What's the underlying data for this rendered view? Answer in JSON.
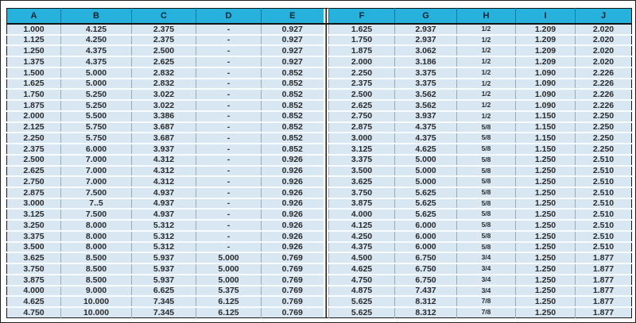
{
  "colors": {
    "header_bg": "#27b2dd",
    "header_text": "#0d2433",
    "row_bg": "#d9e7f3",
    "row_separator": "#fafdff",
    "column_divider": "#98abb8",
    "table_border": "#161616"
  },
  "chart_data": {
    "type": "table",
    "title": "",
    "columns": [
      "A",
      "B",
      "C",
      "D",
      "E",
      "F",
      "G",
      "H",
      "I",
      "J"
    ],
    "fraction_column": "H",
    "rows": [
      [
        "1.000",
        "4.125",
        "2.375",
        "-",
        "0.927",
        "1.625",
        "2.937",
        "1/2",
        "1.209",
        "2.020"
      ],
      [
        "1.125",
        "4.250",
        "2.375",
        "-",
        "0.927",
        "1.750",
        "2.937",
        "1/2",
        "1.209",
        "2.020"
      ],
      [
        "1.250",
        "4.375",
        "2.500",
        "-",
        "0.927",
        "1.875",
        "3.062",
        "1/2",
        "1.209",
        "2.020"
      ],
      [
        "1.375",
        "4.375",
        "2.625",
        "-",
        "0.927",
        "2.000",
        "3.186",
        "1/2",
        "1.209",
        "2.020"
      ],
      [
        "1.500",
        "5.000",
        "2.832",
        "-",
        "0.852",
        "2.250",
        "3.375",
        "1/2",
        "1.090",
        "2.226"
      ],
      [
        "1.625",
        "5.000",
        "2.832",
        "-",
        "0.852",
        "2.375",
        "3.375",
        "1/2",
        "1.090",
        "2.226"
      ],
      [
        "1.750",
        "5.250",
        "3.022",
        "-",
        "0.852",
        "2.500",
        "3.562",
        "1/2",
        "1.090",
        "2.226"
      ],
      [
        "1.875",
        "5.250",
        "3.022",
        "-",
        "0.852",
        "2.625",
        "3.562",
        "1/2",
        "1.090",
        "2.226"
      ],
      [
        "2.000",
        "5.500",
        "3.386",
        "-",
        "0.852",
        "2.750",
        "3.937",
        "1/2",
        "1.150",
        "2.250"
      ],
      [
        "2.125",
        "5.750",
        "3.687",
        "-",
        "0.852",
        "2.875",
        "4.375",
        "5/8",
        "1.150",
        "2.250"
      ],
      [
        "2.250",
        "5.750",
        "3.687",
        "-",
        "0.852",
        "3.000",
        "4.375",
        "5/8",
        "1.150",
        "2.250"
      ],
      [
        "2.375",
        "6.000",
        "3.937",
        "-",
        "0.852",
        "3.125",
        "4.625",
        "5/8",
        "1.150",
        "2.250"
      ],
      [
        "2.500",
        "7.000",
        "4.312",
        "-",
        "0.926",
        "3.375",
        "5.000",
        "5/8",
        "1.250",
        "2.510"
      ],
      [
        "2.625",
        "7.000",
        "4.312",
        "-",
        "0.926",
        "3.500",
        "5.000",
        "5/8",
        "1.250",
        "2.510"
      ],
      [
        "2.750",
        "7.000",
        "4.312",
        "-",
        "0.926",
        "3.625",
        "5.000",
        "5/8",
        "1.250",
        "2.510"
      ],
      [
        "2.875",
        "7.500",
        "4.937",
        "-",
        "0.926",
        "3.750",
        "5.625",
        "5/8",
        "1.250",
        "2.510"
      ],
      [
        "3.000",
        "7..5",
        "4.937",
        "-",
        "0.926",
        "3.875",
        "5.625",
        "5/8",
        "1.250",
        "2.510"
      ],
      [
        "3.125",
        "7.500",
        "4.937",
        "-",
        "0.926",
        "4.000",
        "5.625",
        "5/8",
        "1.250",
        "2.510"
      ],
      [
        "3.250",
        "8.000",
        "5.312",
        "-",
        "0.926",
        "4.125",
        "6.000",
        "5/8",
        "1.250",
        "2.510"
      ],
      [
        "3.375",
        "8.000",
        "5.312",
        "-",
        "0.926",
        "4.250",
        "6.000",
        "5/8",
        "1.250",
        "2.510"
      ],
      [
        "3.500",
        "8.000",
        "5.312",
        "-",
        "0.926",
        "4.375",
        "6.000",
        "5/8",
        "1.250",
        "2.510"
      ],
      [
        "3.625",
        "8.500",
        "5.937",
        "5.000",
        "0.769",
        "4.500",
        "6.750",
        "3/4",
        "1.250",
        "1.877"
      ],
      [
        "3.750",
        "8.500",
        "5.937",
        "5.000",
        "0.769",
        "4.625",
        "6.750",
        "3/4",
        "1.250",
        "1.877"
      ],
      [
        "3.875",
        "8.500",
        "5.937",
        "5.000",
        "0.769",
        "4.750",
        "6.750",
        "3/4",
        "1.250",
        "1.877"
      ],
      [
        "4.000",
        "9.000",
        "6.625",
        "5.375",
        "0.769",
        "4.875",
        "7.437",
        "3/4",
        "1.250",
        "1.877"
      ],
      [
        "4.625",
        "10.000",
        "7.345",
        "6.125",
        "0.769",
        "5.625",
        "8.312",
        "7/8",
        "1.250",
        "1.877"
      ],
      [
        "4.750",
        "10.000",
        "7.345",
        "6.125",
        "0.769",
        "5.625",
        "8.312",
        "7/8",
        "1.250",
        "1.877"
      ]
    ]
  }
}
